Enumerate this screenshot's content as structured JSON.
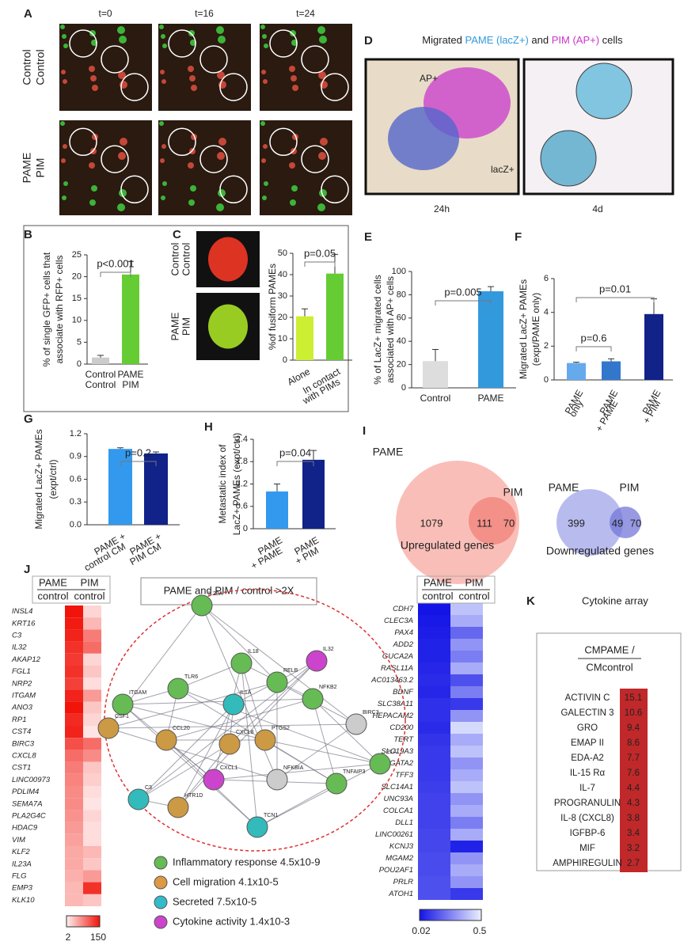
{
  "panel_labels": [
    "A",
    "B",
    "C",
    "D",
    "E",
    "F",
    "G",
    "H",
    "I",
    "J",
    "K"
  ],
  "panel_a": {
    "columns": [
      "t=0",
      "t=16",
      "t=24"
    ],
    "rows": [
      [
        "Control",
        "Control"
      ],
      [
        "PAME",
        "PIM"
      ]
    ]
  },
  "panel_c_images": [
    [
      "Control",
      "Control"
    ],
    [
      "PAME",
      "PIM"
    ]
  ],
  "panel_d": {
    "title": [
      "Migrated",
      "PAME (lacZ+)",
      "and",
      "PIM (AP+)",
      "cells"
    ],
    "image_labels": [
      "AP+",
      "lacZ+"
    ],
    "captions": [
      "24h",
      "4d"
    ]
  },
  "chart_data": [
    {
      "type": "bar",
      "ylabel": [
        "% of single GFP+ cells that",
        "associate with RFP+ cells"
      ],
      "categories": [
        [
          "Control",
          "Control"
        ],
        [
          "PAME",
          "PIM"
        ]
      ],
      "values": [
        1.5,
        20.5
      ],
      "errors": [
        0.5,
        3
      ],
      "colors": [
        "#cccccc",
        "#66cc33"
      ],
      "ylim": [
        0,
        25
      ],
      "yticks": [
        0,
        5,
        10,
        15,
        20,
        25
      ],
      "annotations": [
        "p<0.001"
      ]
    },
    {
      "type": "bar",
      "ylabel": [
        "%of fusiform PAMEs"
      ],
      "categories": [
        [
          "Alone"
        ],
        [
          "In contact",
          "with PIMs"
        ]
      ],
      "values": [
        20.5,
        40.5
      ],
      "errors": [
        3.5,
        9
      ],
      "colors": [
        "#ccee33",
        "#66cc33"
      ],
      "ylim": [
        0,
        50
      ],
      "yticks": [
        0,
        10,
        20,
        30,
        40,
        50
      ],
      "annotations": [
        "p=0.05"
      ]
    },
    {
      "type": "bar",
      "ylabel": [
        "% of LacZ+ migrated cells",
        "associated with AP+ cells"
      ],
      "categories": [
        [
          "Control"
        ],
        [
          "PAME"
        ]
      ],
      "values": [
        23,
        83
      ],
      "errors": [
        10,
        4
      ],
      "colors": [
        "#dddddd",
        "#3399dd"
      ],
      "ylim": [
        0,
        100
      ],
      "yticks": [
        0,
        20,
        40,
        60,
        80,
        100
      ],
      "annotations": [
        "p=0.005"
      ]
    },
    {
      "type": "bar",
      "ylabel": [
        "Migrated LacZ+ PAMEs",
        "(expt/PAME only)"
      ],
      "categories": [
        [
          "PAME",
          "only"
        ],
        [
          "PAME",
          "+ PAME"
        ],
        [
          "PAME",
          "+ PIM"
        ]
      ],
      "values": [
        1,
        1.1,
        3.9
      ],
      "errors": [
        0.05,
        0.15,
        0.9
      ],
      "colors": [
        "#66aaee",
        "#3377cc",
        "#112288"
      ],
      "ylim": [
        0,
        6
      ],
      "yticks": [
        0,
        2,
        4,
        6
      ],
      "annotations": [
        "p=0.6",
        "p=0.01"
      ]
    },
    {
      "type": "bar",
      "ylabel": [
        "Migrated LacZ+ PAMEs",
        "(expt/ctrl)"
      ],
      "categories": [
        [
          "PAME +",
          "control CM"
        ],
        [
          "PAME +",
          "PIM CM"
        ]
      ],
      "values": [
        1.0,
        0.94
      ],
      "errors": [
        0.015,
        0.02
      ],
      "colors": [
        "#3399ee",
        "#112288"
      ],
      "ylim": [
        0,
        1.2
      ],
      "yticks": [
        {
          "value": 0,
          "label": "0.0"
        },
        0.3,
        0.6,
        0.9,
        1.2
      ],
      "annotations": [
        "p=0.2"
      ]
    },
    {
      "type": "bar",
      "ylabel": [
        "Metastatic index of",
        "LacZ+ PAMEs (expt/ctrl)"
      ],
      "categories": [
        [
          "PAME",
          "+ PAME"
        ],
        [
          "PAME",
          "+ PIM"
        ]
      ],
      "values": [
        1.0,
        1.85
      ],
      "errors": [
        0.2,
        0.25
      ],
      "colors": [
        "#3399ee",
        "#112288"
      ],
      "ylim": [
        0,
        2.4
      ],
      "yticks": [
        0,
        0.6,
        1.2,
        1.8,
        2.4
      ],
      "annotations": [
        "p=0.04"
      ]
    }
  ],
  "panel_i": {
    "up": {
      "names": [
        "PAME",
        "PIM"
      ],
      "counts": [
        1079,
        111,
        70
      ],
      "caption": "Upregulated genes"
    },
    "down": {
      "names": [
        "PAME",
        "PIM"
      ],
      "counts": [
        399,
        49,
        70
      ],
      "caption": "Downregulated genes"
    }
  },
  "panel_j": {
    "left_header": [
      [
        "PAME",
        "control"
      ],
      [
        "PIM",
        "control"
      ]
    ],
    "network_title": "PAME and PIM / control >2X",
    "up_genes": [
      "INSL4",
      "KRT16",
      "C3",
      "IL32",
      "AKAP12",
      "FGL1",
      "NRP2",
      "ITGAM",
      "ANO3",
      "RP1",
      "CST4",
      "BIRC3",
      "CXCL8",
      "CST1",
      "LINC00973",
      "PDLIM4",
      "SEMA7A",
      "PLA2G4C",
      "HDAC9",
      "VIM",
      "KLF2",
      "IL23A",
      "FLG",
      "EMP3",
      "KLK10"
    ],
    "up_pame": [
      150,
      145,
      140,
      130,
      125,
      130,
      120,
      140,
      150,
      135,
      140,
      110,
      90,
      80,
      75,
      70,
      70,
      65,
      60,
      55,
      50,
      50,
      45,
      40,
      40
    ],
    "up_pim": [
      20,
      40,
      80,
      90,
      20,
      30,
      15,
      60,
      30,
      20,
      10,
      90,
      70,
      30,
      25,
      15,
      10,
      20,
      15,
      15,
      40,
      30,
      60,
      130,
      30
    ],
    "up_scale": [
      2,
      150
    ],
    "right_header": [
      [
        "PAME",
        "control"
      ],
      [
        "PIM",
        "control"
      ]
    ],
    "down_genes": [
      "CDH7",
      "CLEC3A",
      "PAX4",
      "ADD2",
      "GUCA2A",
      "RASL11A",
      "AC013463.2",
      "BDNF",
      "SLC38A11",
      "HEPACAM2",
      "CD200",
      "TERT",
      "SLC19A3",
      "GATA2",
      "TFF3",
      "SLC14A1",
      "UNC93A",
      "COLCA1",
      "DLL1",
      "LINC00261",
      "KCNJ3",
      "MGAM2",
      "POU2AF1",
      "PRLR",
      "ATOH1"
    ],
    "down_pame": [
      0.02,
      0.03,
      0.04,
      0.05,
      0.05,
      0.06,
      0.07,
      0.06,
      0.08,
      0.08,
      0.07,
      0.09,
      0.1,
      0.1,
      0.1,
      0.11,
      0.12,
      0.12,
      0.12,
      0.13,
      0.13,
      0.14,
      0.14,
      0.15,
      0.15
    ],
    "down_pim": [
      0.4,
      0.35,
      0.2,
      0.3,
      0.25,
      0.35,
      0.15,
      0.25,
      0.1,
      0.3,
      0.45,
      0.35,
      0.4,
      0.3,
      0.35,
      0.4,
      0.3,
      0.35,
      0.25,
      0.35,
      0.05,
      0.3,
      0.35,
      0.3,
      0.1
    ],
    "down_scale": [
      0.02,
      0.5
    ],
    "nodes": [
      "IL23A",
      "IL18",
      "IL32",
      "TLR6",
      "RELB",
      "ITGAM",
      "IL1A",
      "NFKB2",
      "CSF1",
      "CCL20",
      "CXCL8",
      "PTGS2",
      "BIRC3",
      "PLA",
      "C3",
      "CXCL1",
      "NFKBIA",
      "TNFAIP3",
      "HTR1D",
      "TCN1"
    ],
    "legend": [
      "Inflammatory response 4.5x10-9",
      "Cell migration 4.1x10-5",
      "Secreted 7.5x10-5",
      "Cytokine activity 1.4x10-3"
    ]
  },
  "panel_k": {
    "title": "Cytokine array",
    "header": [
      "CMPAME /",
      "CMcontrol"
    ],
    "names": [
      "ACTIVIN C",
      "GALECTIN 3",
      "GRO",
      "EMAP II",
      "EDA-A2",
      "IL-15 Rα",
      "IL-7",
      "PROGRANULIN",
      "IL-8 (CXCL8)",
      "IGFBP-6",
      "MIF",
      "AMPHIREGULIN"
    ],
    "values": [
      15.1,
      10.6,
      9.4,
      8.6,
      7.7,
      7.6,
      4.4,
      4.3,
      3.8,
      3.4,
      3.2,
      2.7
    ]
  }
}
